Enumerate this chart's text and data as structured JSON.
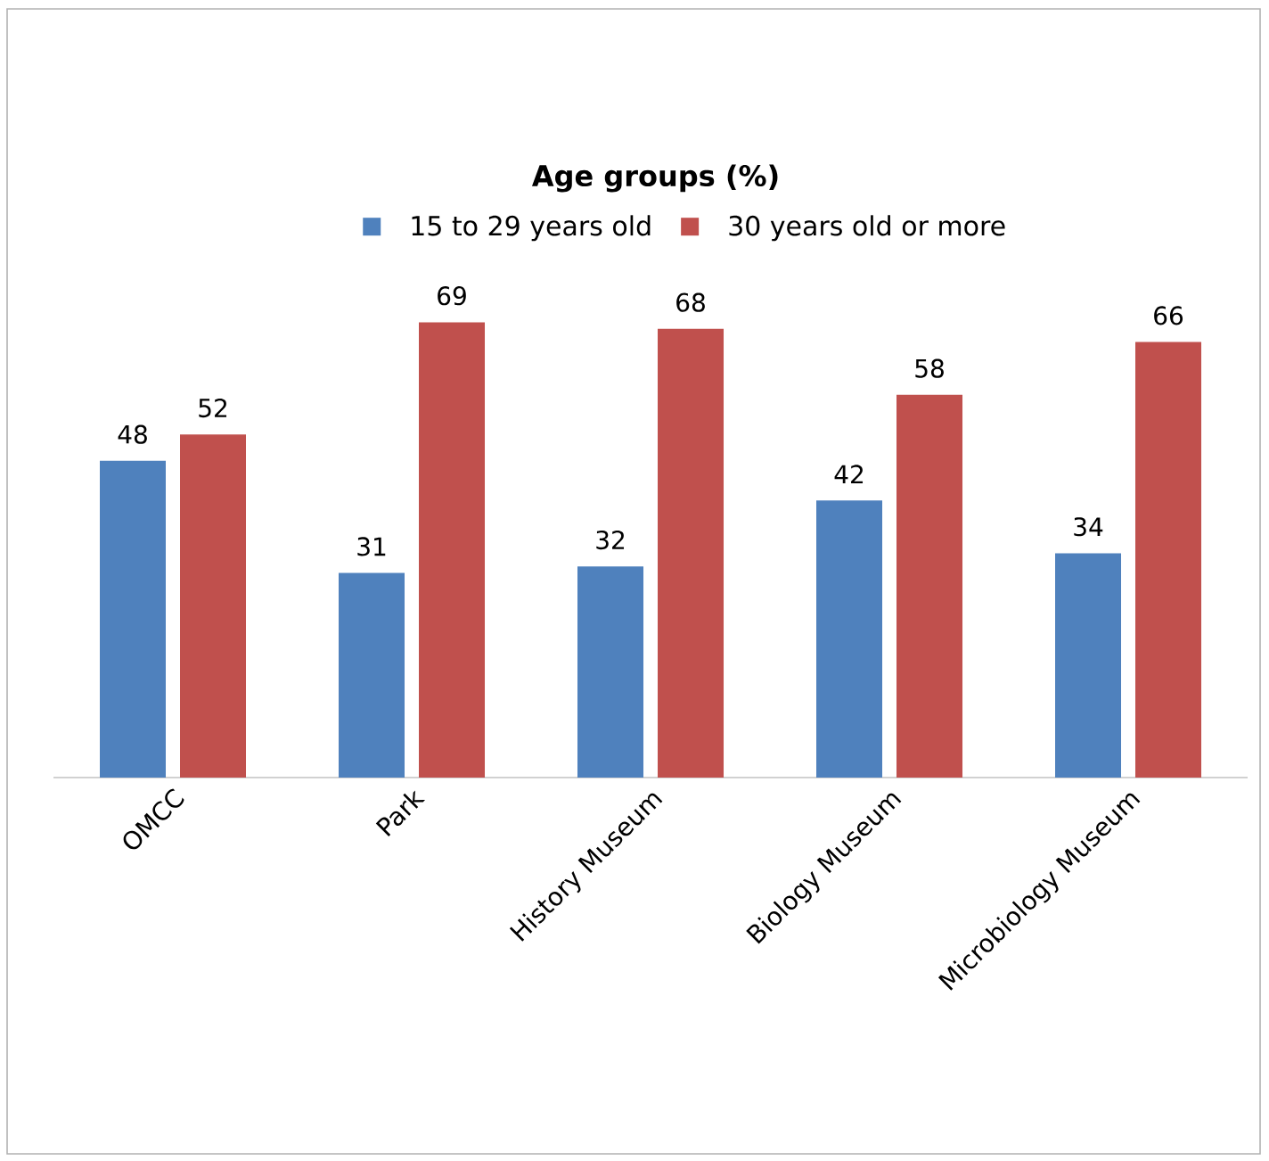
{
  "chart_data": {
    "type": "bar",
    "title": "Age groups (%)",
    "categories": [
      "OMCC",
      "Park",
      "History Museum",
      "Biology Museum",
      "Microbiology Museum"
    ],
    "series": [
      {
        "name": "15 to 29 years old",
        "color": "#4f81bd",
        "values": [
          48,
          31,
          32,
          42,
          34
        ]
      },
      {
        "name": "30 years old or more",
        "color": "#c0504d",
        "values": [
          52,
          69,
          68,
          58,
          66
        ]
      }
    ],
    "data_labels": true,
    "legend": "top"
  }
}
